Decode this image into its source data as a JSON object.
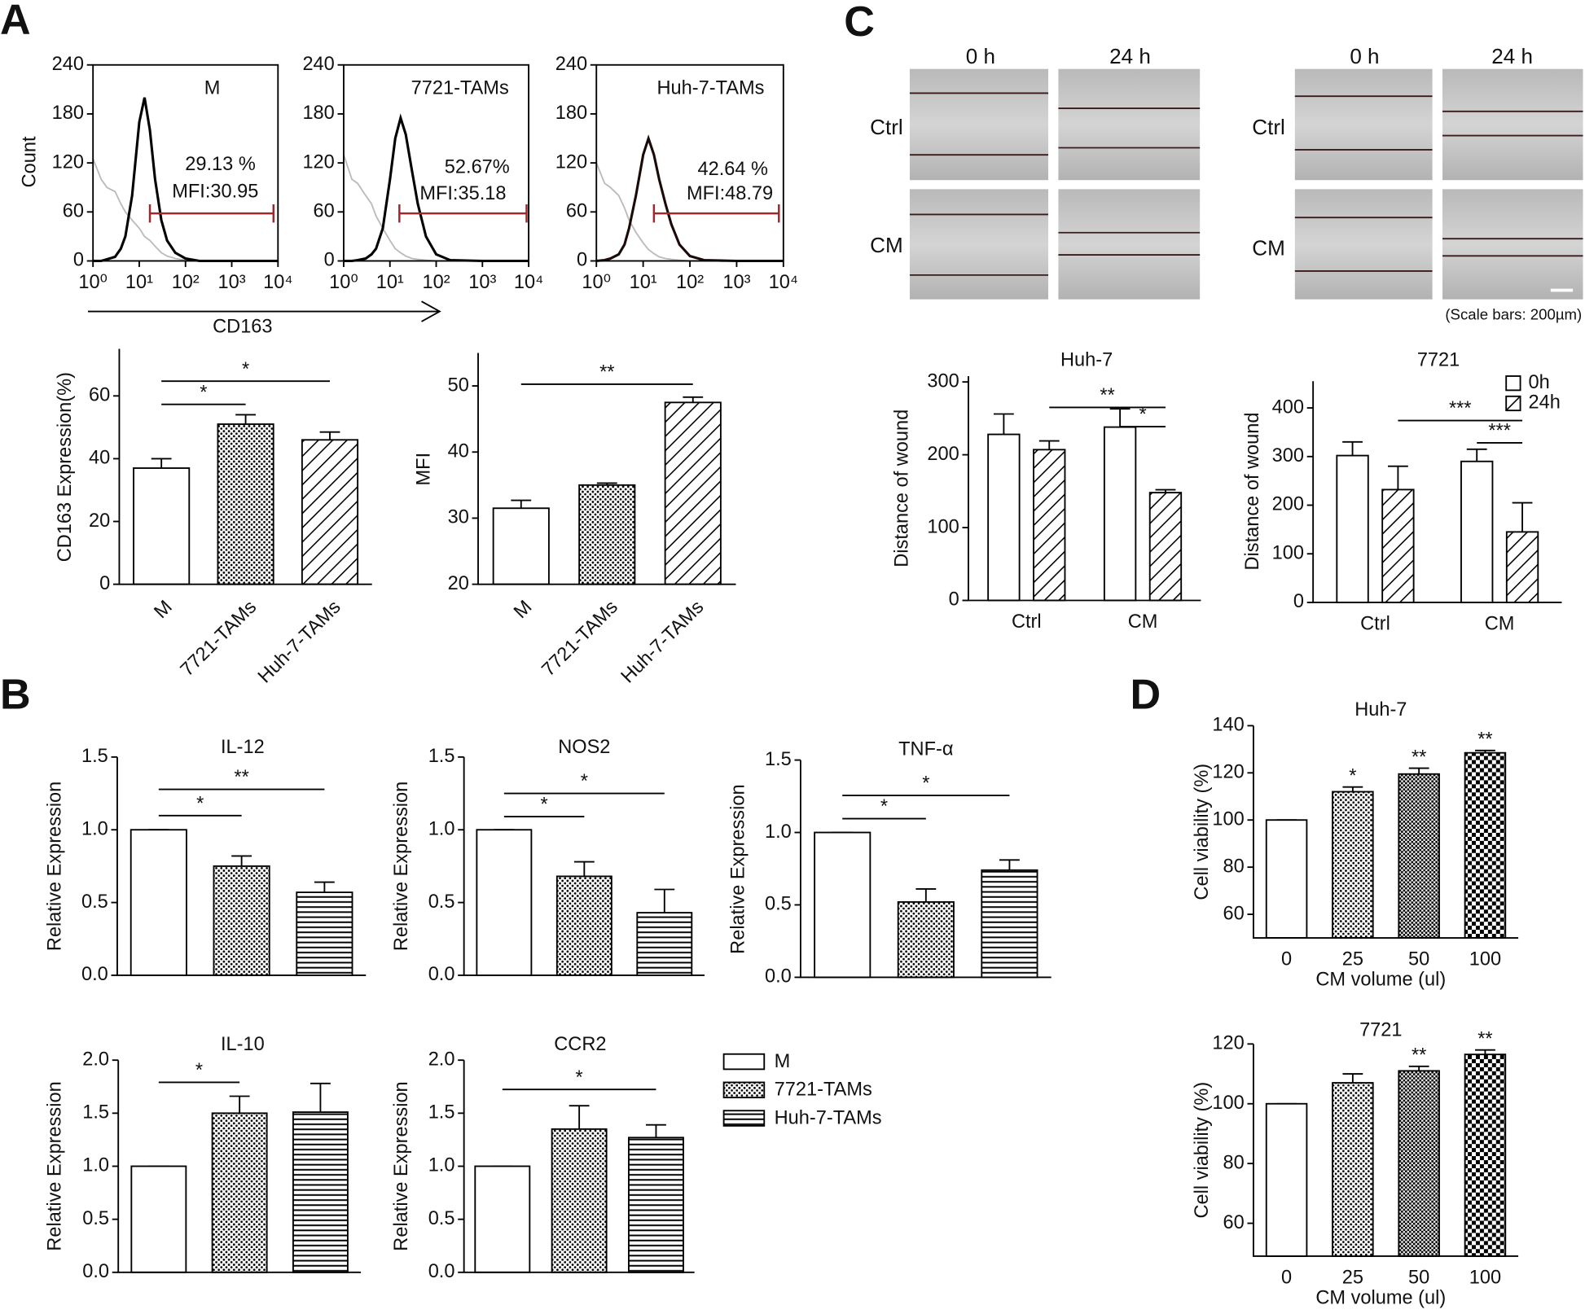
{
  "panels": [
    "A",
    "B",
    "C",
    "D"
  ],
  "panel_c_images": {
    "sets": [
      {
        "time_labels": [
          "0 h",
          "24 h"
        ],
        "row_labels": [
          "Ctrl",
          "CM"
        ]
      },
      {
        "time_labels": [
          "0 h",
          "24 h"
        ],
        "row_labels": [
          "Ctrl",
          "CM"
        ]
      }
    ],
    "scale_note": "(Scale bars: 200µm)"
  },
  "chart_data": [
    {
      "type": "histogram_curve",
      "title": "M",
      "y_label": "Count",
      "x_label": "CD163",
      "log_x": true,
      "xlim": [
        1,
        10000
      ],
      "xticks": [
        {
          "value": 1,
          "label": "10⁰"
        },
        {
          "value": 10,
          "label": "10¹"
        },
        {
          "value": 100,
          "label": "10²"
        },
        {
          "value": 1000,
          "label": "10³"
        },
        {
          "value": 10000,
          "label": "10⁴"
        }
      ],
      "ylim": [
        0,
        240
      ],
      "yticks": [
        0,
        60,
        120,
        180,
        240
      ],
      "x": [
        1,
        1.5,
        2,
        3,
        4,
        5,
        7,
        10,
        13,
        17,
        22,
        30,
        40,
        60,
        100,
        200,
        1000,
        10000
      ],
      "series": [
        {
          "color": "#bbbbbb",
          "values": [
            125,
            100,
            90,
            85,
            70,
            60,
            50,
            40,
            30,
            25,
            18,
            10,
            6,
            3,
            1,
            0,
            0,
            0
          ]
        },
        {
          "color": "#000000",
          "values": [
            0,
            0,
            2,
            5,
            15,
            30,
            80,
            170,
            200,
            160,
            100,
            50,
            25,
            10,
            3,
            0,
            0,
            0
          ]
        }
      ],
      "annotations": [
        "29.13 %",
        "MFI:30.95"
      ],
      "gate": [
        17,
        8000
      ],
      "gate_color": "#a0282d"
    },
    {
      "type": "histogram_curve",
      "title": "7721-TAMs",
      "log_x": true,
      "xlim": [
        1,
        10000
      ],
      "xticks": [
        {
          "value": 1,
          "label": "10⁰"
        },
        {
          "value": 10,
          "label": "10¹"
        },
        {
          "value": 100,
          "label": "10²"
        },
        {
          "value": 1000,
          "label": "10³"
        },
        {
          "value": 10000,
          "label": "10⁴"
        }
      ],
      "ylim": [
        0,
        240
      ],
      "yticks": [
        0,
        60,
        120,
        180,
        240
      ],
      "x": [
        1,
        1.5,
        2,
        3,
        4,
        5,
        7,
        10,
        13,
        17,
        22,
        30,
        40,
        60,
        100,
        200,
        1000,
        10000
      ],
      "series": [
        {
          "color": "#bbbbbb",
          "values": [
            130,
            100,
            95,
            80,
            70,
            55,
            40,
            25,
            15,
            10,
            6,
            3,
            2,
            1,
            0,
            0,
            0,
            0
          ]
        },
        {
          "color": "#000000",
          "values": [
            0,
            0,
            1,
            3,
            8,
            15,
            40,
            100,
            150,
            175,
            155,
            110,
            70,
            30,
            8,
            1,
            0,
            0
          ]
        }
      ],
      "annotations": [
        "52.67%",
        "MFI:35.18"
      ],
      "gate": [
        16,
        9000
      ],
      "gate_color": "#a0282d"
    },
    {
      "type": "histogram_curve",
      "title": "Huh-7-TAMs",
      "log_x": true,
      "xlim": [
        1,
        10000
      ],
      "xticks": [
        {
          "value": 1,
          "label": "10⁰"
        },
        {
          "value": 10,
          "label": "10¹"
        },
        {
          "value": 100,
          "label": "10²"
        },
        {
          "value": 1000,
          "label": "10³"
        },
        {
          "value": 10000,
          "label": "10⁴"
        }
      ],
      "ylim": [
        0,
        240
      ],
      "yticks": [
        0,
        60,
        120,
        180,
        240
      ],
      "x": [
        1,
        1.5,
        2,
        3,
        4,
        5,
        7,
        10,
        13,
        17,
        22,
        30,
        40,
        60,
        100,
        200,
        1000,
        10000
      ],
      "series": [
        {
          "color": "#bbbbbb",
          "values": [
            120,
            95,
            90,
            80,
            65,
            50,
            35,
            22,
            14,
            9,
            5,
            3,
            2,
            1,
            0,
            0,
            0,
            0
          ]
        },
        {
          "color": "#1a0a0a",
          "values": [
            0,
            1,
            3,
            8,
            20,
            40,
            80,
            130,
            150,
            130,
            100,
            70,
            45,
            20,
            6,
            1,
            0,
            0
          ]
        }
      ],
      "annotations": [
        "42.64 %",
        "MFI:48.79"
      ],
      "gate": [
        17,
        8000
      ],
      "gate_color": "#a0282d"
    },
    {
      "type": "bar",
      "y_label": "CD163  Expression(%)",
      "categories": [
        "M",
        "7721-TAMs",
        "Huh-7-TAMs"
      ],
      "values": [
        37,
        51,
        46
      ],
      "errors": [
        3,
        3,
        2.5
      ],
      "patterns": [
        "none",
        "dots",
        "hatch"
      ],
      "ylim": [
        0,
        75
      ],
      "yticks": [
        0,
        20,
        40,
        60
      ],
      "significance": [
        {
          "bars": [
            0,
            1
          ],
          "label": "*"
        },
        {
          "bars": [
            0,
            2
          ],
          "label": "*"
        }
      ]
    },
    {
      "type": "bar",
      "y_label": "MFI",
      "categories": [
        "M",
        "7721-TAMs",
        "Huh-7-TAMs"
      ],
      "values": [
        31.5,
        35,
        47.5
      ],
      "errors": [
        1.2,
        0.3,
        0.8
      ],
      "patterns": [
        "none",
        "dots",
        "hatch"
      ],
      "ylim": [
        20,
        55
      ],
      "yticks": [
        20,
        30,
        40,
        50
      ],
      "significance": [
        {
          "bars": [
            0,
            2
          ],
          "label": "**"
        }
      ]
    },
    {
      "type": "bar",
      "title": "Huh-7",
      "y_label": "Distance of wound",
      "categories": [
        "Ctrl",
        "CM"
      ],
      "series": [
        {
          "pattern": "none",
          "values": [
            228,
            238
          ],
          "errors": [
            28,
            25
          ]
        },
        {
          "pattern": "hatch",
          "values": [
            207,
            148
          ],
          "errors": [
            12,
            4
          ]
        }
      ],
      "ylim": [
        0,
        308
      ],
      "yticks": [
        0,
        100,
        200,
        300
      ],
      "significance": [
        {
          "bars": [
            1,
            3
          ],
          "label": "**"
        },
        {
          "bars": [
            2,
            3
          ],
          "label": "*"
        }
      ]
    },
    {
      "type": "bar",
      "title": "7721",
      "y_label": "Distance of wound",
      "categories": [
        "Ctrl",
        "CM"
      ],
      "series": [
        {
          "name": "0h",
          "pattern": "none",
          "values": [
            302,
            290
          ],
          "errors": [
            28,
            25
          ]
        },
        {
          "name": "24h",
          "pattern": "hatch",
          "values": [
            232,
            145
          ],
          "errors": [
            48,
            60
          ]
        }
      ],
      "ylim": [
        0,
        455
      ],
      "yticks": [
        0,
        100,
        200,
        300,
        400
      ],
      "legend": "upper right",
      "significance": [
        {
          "bars": [
            1,
            3
          ],
          "label": "***"
        },
        {
          "bars": [
            2,
            3
          ],
          "label": "***"
        }
      ]
    },
    {
      "type": "bar",
      "title": "IL-12",
      "y_label": "Relative Expression",
      "categories": [
        null,
        null,
        null
      ],
      "values": [
        1,
        0.75,
        0.57
      ],
      "errors": [
        0,
        0.07,
        0.07
      ],
      "patterns": [
        "none",
        "dots",
        "hlines"
      ],
      "ylim": [
        0,
        1.5
      ],
      "yticks": [
        {
          "value": 0,
          "label": "0.0"
        },
        0.5,
        {
          "value": 1,
          "label": "1.0"
        },
        1.5
      ],
      "significance": [
        {
          "bars": [
            0,
            1
          ],
          "label": "*"
        },
        {
          "bars": [
            0,
            2
          ],
          "label": "**"
        }
      ]
    },
    {
      "type": "bar",
      "title": "NOS2",
      "y_label": "Relative Expression",
      "categories": [
        null,
        null,
        null
      ],
      "values": [
        1,
        0.68,
        0.43
      ],
      "errors": [
        0,
        0.1,
        0.16
      ],
      "patterns": [
        "none",
        "dots",
        "hlines"
      ],
      "ylim": [
        0,
        1.5
      ],
      "yticks": [
        {
          "value": 0,
          "label": "0.0"
        },
        0.5,
        {
          "value": 1,
          "label": "1.0"
        },
        1.5
      ],
      "significance": [
        {
          "bars": [
            0,
            1
          ],
          "label": "*"
        },
        {
          "bars": [
            0,
            2
          ],
          "label": "*"
        }
      ]
    },
    {
      "type": "bar",
      "title": "TNF-α",
      "y_label": "Relative Expression",
      "categories": [
        null,
        null,
        null
      ],
      "values": [
        1,
        0.52,
        0.74
      ],
      "errors": [
        0,
        0.09,
        0.07
      ],
      "patterns": [
        "none",
        "dots",
        "hlines"
      ],
      "ylim": [
        0,
        1.5
      ],
      "yticks": [
        {
          "value": 0,
          "label": "0.0"
        },
        0.5,
        {
          "value": 1,
          "label": "1.0"
        },
        1.5
      ],
      "significance": [
        {
          "bars": [
            0,
            1
          ],
          "label": "*"
        },
        {
          "bars": [
            0,
            2
          ],
          "label": "*"
        }
      ]
    },
    {
      "type": "bar",
      "title": "IL-10",
      "y_label": "Relative Expression",
      "categories": [
        null,
        null,
        null
      ],
      "values": [
        1,
        1.5,
        1.51
      ],
      "errors": [
        0,
        0.16,
        0.27
      ],
      "patterns": [
        "none",
        "dots",
        "hlines"
      ],
      "ylim": [
        0,
        2
      ],
      "yticks": [
        {
          "value": 0,
          "label": "0.0"
        },
        0.5,
        {
          "value": 1,
          "label": "1.0"
        },
        1.5,
        {
          "value": 2,
          "label": "2.0"
        }
      ],
      "significance": [
        {
          "bars": [
            0,
            1
          ],
          "label": "*"
        }
      ]
    },
    {
      "type": "bar",
      "title": "CCR2",
      "y_label": "Relative Expression",
      "categories": [
        null,
        null,
        null
      ],
      "values": [
        1,
        1.35,
        1.27
      ],
      "errors": [
        0,
        0.22,
        0.12
      ],
      "patterns": [
        "none",
        "dots",
        "hlines"
      ],
      "ylim": [
        0,
        2
      ],
      "yticks": [
        {
          "value": 0,
          "label": "0.0"
        },
        0.5,
        {
          "value": 1,
          "label": "1.0"
        },
        1.5,
        {
          "value": 2,
          "label": "2.0"
        }
      ],
      "significance": [
        {
          "bars": [
            0,
            2
          ],
          "label": "*"
        }
      ],
      "legend": "right",
      "legend_entries": [
        "M",
        "7721-TAMs",
        "Huh-7-TAMs"
      ]
    },
    {
      "type": "bar",
      "title": "Huh-7",
      "y_label": "Cell viability (%)",
      "x_label": "CM volume (ul)",
      "categories": [
        "0",
        "25",
        "50",
        "100"
      ],
      "values": [
        100,
        112,
        119.5,
        128.5
      ],
      "errors": [
        0,
        2,
        2.5,
        1
      ],
      "patterns": [
        "none",
        "dots",
        "dense",
        "check"
      ],
      "ylim": [
        50,
        140
      ],
      "yticks": [
        60,
        80,
        100,
        120,
        140
      ],
      "significance": [
        {
          "bars": [
            1
          ],
          "label": "*"
        },
        {
          "bars": [
            2
          ],
          "label": "**"
        },
        {
          "bars": [
            3
          ],
          "label": "**"
        }
      ]
    },
    {
      "type": "bar",
      "title": "7721",
      "y_label": "Cell viability (%)",
      "x_label": "CM volume (ul)",
      "categories": [
        "0",
        "25",
        "50",
        "100"
      ],
      "values": [
        100,
        107,
        111,
        116.5
      ],
      "errors": [
        0,
        3,
        1.5,
        1.5
      ],
      "patterns": [
        "none",
        "dots",
        "dense",
        "check"
      ],
      "ylim": [
        49,
        120
      ],
      "yticks": [
        60,
        80,
        100,
        120
      ],
      "significance": [
        {
          "bars": [
            2
          ],
          "label": "**"
        },
        {
          "bars": [
            3
          ],
          "label": "**"
        }
      ]
    }
  ]
}
